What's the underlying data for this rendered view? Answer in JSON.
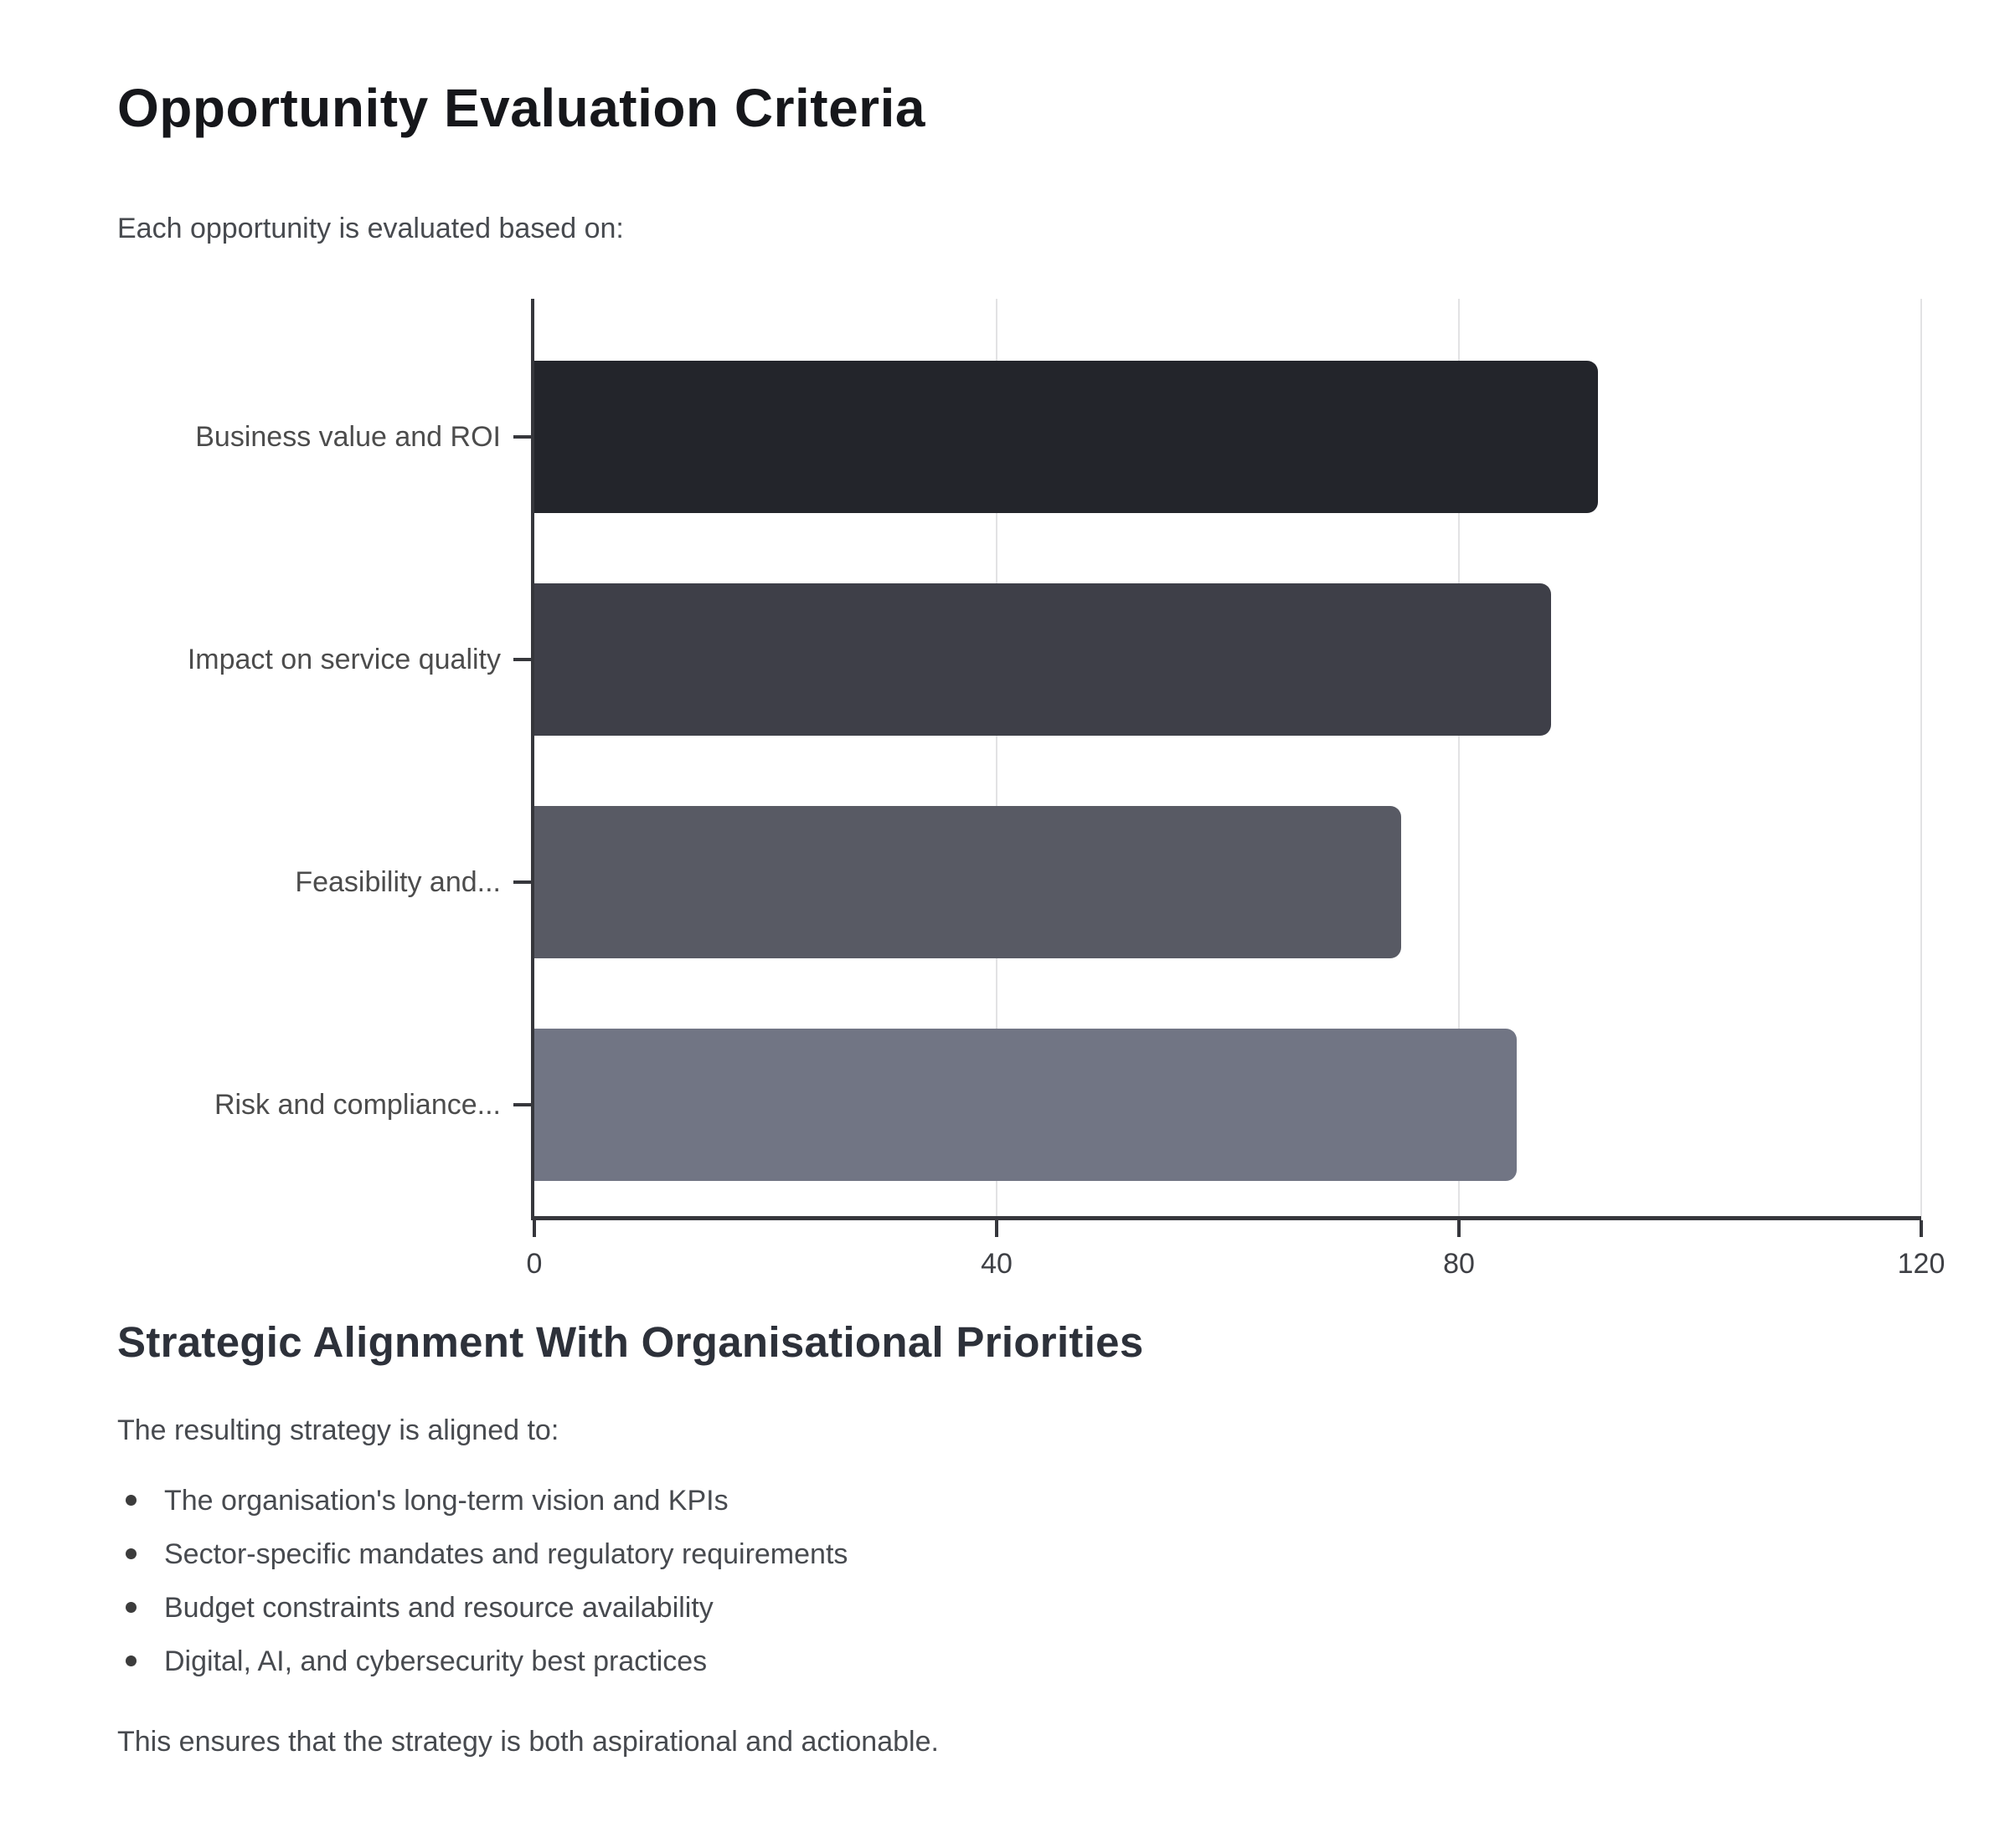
{
  "page": {
    "title": "Opportunity Evaluation Criteria",
    "intro": "Each opportunity is evaluated based on:"
  },
  "chart_data": {
    "type": "bar",
    "orientation": "horizontal",
    "title": "",
    "categories": [
      "Business value and ROI",
      "Impact on service quality",
      "Feasibility and...",
      "Risk and compliance..."
    ],
    "values": [
      92,
      88,
      75,
      85
    ],
    "xlabel": "",
    "ylabel": "",
    "xlim": [
      0,
      120
    ],
    "xticks": [
      0,
      40,
      80,
      120
    ],
    "bar_colors": [
      "#23252b",
      "#3e3f48",
      "#585a64",
      "#717584"
    ],
    "grid": true,
    "legend": false
  },
  "section": {
    "heading": "Strategic Alignment With Organisational Priorities",
    "intro": "The resulting strategy is aligned to:",
    "bullets": [
      "The organisation's long-term vision and KPIs",
      "Sector-specific mandates and regulatory requirements",
      "Budget constraints and resource availability",
      "Digital, AI, and cybersecurity best practices"
    ],
    "closing": "This ensures that the strategy is both aspirational and actionable."
  },
  "colors": {
    "axis": "#36373c",
    "grid": "#e2e2e4",
    "heading": "#16171b",
    "subheading": "#2d313a",
    "body_text": "#474a4f",
    "axis_label": "#3e4045"
  }
}
